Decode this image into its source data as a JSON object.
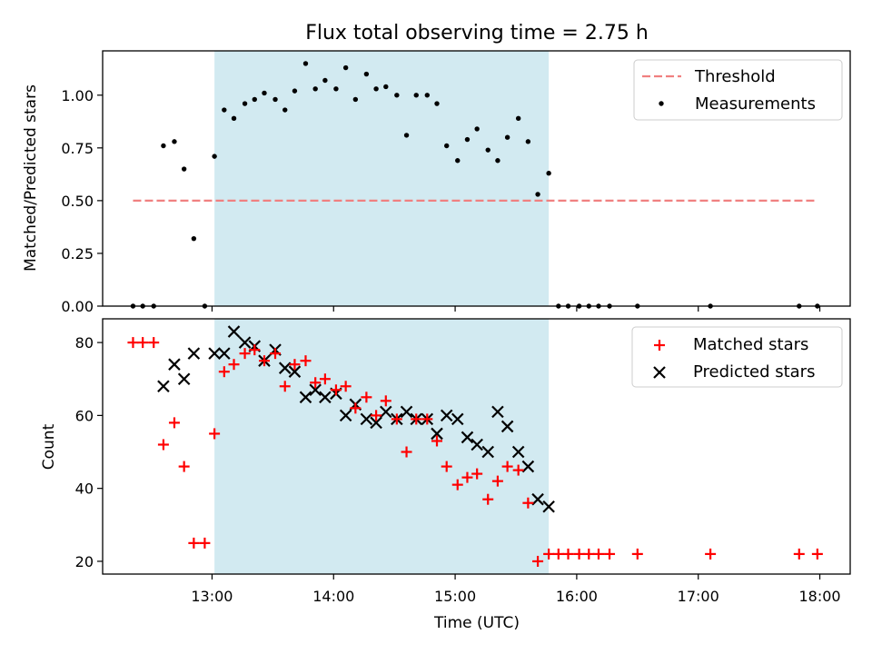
{
  "title": "Flux total observing time = 2.75 h",
  "chart_data": [
    {
      "type": "scatter",
      "ylabel": "Matched/Predicted stars",
      "xlim": [
        12.1,
        18.25
      ],
      "ylim": [
        0.0,
        1.21
      ],
      "yticks": [
        0.0,
        0.25,
        0.5,
        0.75,
        1.0
      ],
      "ytick_labels": [
        "0.00",
        "0.25",
        "0.50",
        "0.75",
        "1.00"
      ],
      "xticks": [
        13,
        14,
        15,
        16,
        17,
        18
      ],
      "shaded_span": [
        13.02,
        15.77
      ],
      "legend": [
        "Threshold",
        "Measurements"
      ],
      "legend_position": "top-right",
      "threshold": {
        "name": "Threshold",
        "x": [
          12.35,
          17.98
        ],
        "y": 0.5,
        "color": "#f08080",
        "style": "dashed"
      },
      "measurements": {
        "name": "Measurements",
        "color": "#000000",
        "x": [
          12.35,
          12.43,
          12.52,
          12.6,
          12.69,
          12.77,
          12.85,
          12.94,
          13.02,
          13.1,
          13.18,
          13.27,
          13.35,
          13.43,
          13.52,
          13.6,
          13.68,
          13.77,
          13.85,
          13.93,
          14.02,
          14.1,
          14.18,
          14.27,
          14.35,
          14.43,
          14.52,
          14.6,
          14.68,
          14.77,
          14.85,
          14.93,
          15.02,
          15.1,
          15.18,
          15.27,
          15.35,
          15.43,
          15.52,
          15.6,
          15.68,
          15.77,
          15.85,
          15.93,
          16.02,
          16.1,
          16.18,
          16.27,
          16.5,
          17.1,
          17.83,
          17.98
        ],
        "y": [
          0.0,
          0.0,
          0.0,
          0.76,
          0.78,
          0.65,
          0.32,
          0.0,
          0.71,
          0.93,
          0.89,
          0.96,
          0.98,
          1.01,
          0.98,
          0.93,
          1.02,
          1.15,
          1.03,
          1.07,
          1.03,
          1.13,
          0.98,
          1.1,
          1.03,
          1.04,
          1.0,
          0.81,
          1.0,
          1.0,
          0.96,
          0.76,
          0.69,
          0.79,
          0.84,
          0.74,
          0.69,
          0.8,
          0.89,
          0.78,
          0.53,
          0.63,
          0.0,
          0.0,
          0.0,
          0.0,
          0.0,
          0.0,
          0.0,
          0.0,
          0.0,
          0.0
        ]
      }
    },
    {
      "type": "scatter",
      "ylabel": "Count",
      "xlabel": "Time (UTC)",
      "xlim": [
        12.1,
        18.25
      ],
      "ylim": [
        16.5,
        86.5
      ],
      "yticks": [
        20,
        40,
        60,
        80
      ],
      "xticks": [
        13,
        14,
        15,
        16,
        17,
        18
      ],
      "xtick_labels": [
        "13:00",
        "14:00",
        "15:00",
        "16:00",
        "17:00",
        "18:00"
      ],
      "shaded_span": [
        13.02,
        15.77
      ],
      "legend": [
        "Matched stars",
        "Predicted stars"
      ],
      "legend_position": "top-right",
      "series": [
        {
          "name": "Matched stars",
          "marker": "plus",
          "color": "#ff0000",
          "x": [
            12.35,
            12.43,
            12.52,
            12.6,
            12.69,
            12.77,
            12.85,
            12.94,
            13.02,
            13.1,
            13.18,
            13.27,
            13.35,
            13.43,
            13.52,
            13.6,
            13.68,
            13.77,
            13.85,
            13.93,
            14.02,
            14.1,
            14.18,
            14.27,
            14.35,
            14.43,
            14.52,
            14.6,
            14.68,
            14.77,
            14.85,
            14.93,
            15.02,
            15.1,
            15.18,
            15.27,
            15.35,
            15.43,
            15.52,
            15.6,
            15.68,
            15.77,
            15.85,
            15.93,
            16.02,
            16.1,
            16.18,
            16.27,
            16.5,
            17.1,
            17.83,
            17.98
          ],
          "values": [
            80,
            80,
            80,
            52,
            58,
            46,
            25,
            25,
            55,
            72,
            74,
            77,
            78,
            75,
            77,
            68,
            74,
            75,
            69,
            70,
            67,
            68,
            62,
            65,
            60,
            64,
            59,
            50,
            59,
            59,
            53,
            46,
            41,
            43,
            44,
            37,
            42,
            46,
            45,
            36,
            20,
            22,
            22,
            22,
            22,
            22,
            22,
            22,
            22,
            22,
            22,
            22
          ]
        },
        {
          "name": "Predicted stars",
          "marker": "x",
          "color": "#000000",
          "x": [
            12.6,
            12.69,
            12.77,
            12.85,
            13.02,
            13.1,
            13.18,
            13.27,
            13.35,
            13.43,
            13.52,
            13.6,
            13.68,
            13.77,
            13.85,
            13.93,
            14.02,
            14.1,
            14.18,
            14.27,
            14.35,
            14.43,
            14.52,
            14.6,
            14.68,
            14.77,
            14.85,
            14.93,
            15.02,
            15.1,
            15.18,
            15.27,
            15.35,
            15.43,
            15.52,
            15.6,
            15.68,
            15.77
          ],
          "values": [
            68,
            74,
            70,
            77,
            77,
            77,
            83,
            80,
            79,
            75,
            78,
            73,
            72,
            65,
            67,
            65,
            66,
            60,
            63,
            59,
            58,
            61,
            59,
            61,
            59,
            59,
            55,
            60,
            59,
            54,
            52,
            50,
            61,
            57,
            50,
            46,
            37,
            35
          ]
        }
      ]
    }
  ]
}
